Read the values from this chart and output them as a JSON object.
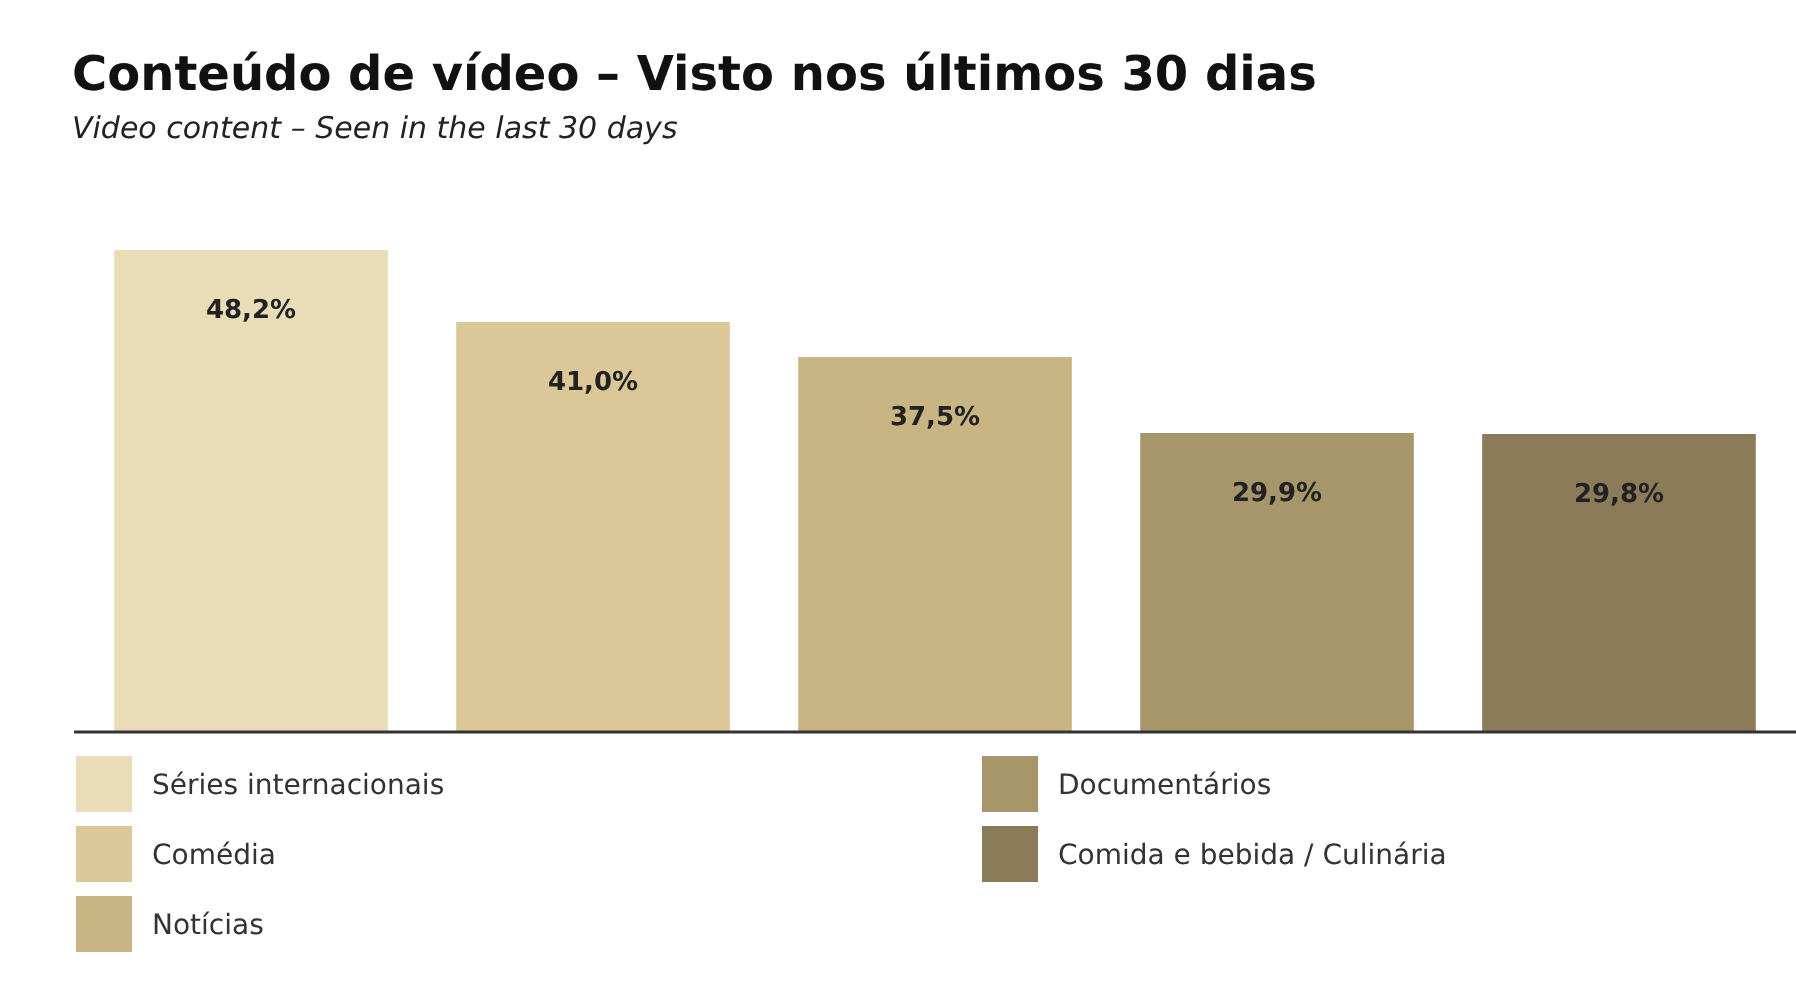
{
  "chart_data": {
    "type": "bar",
    "title": "Conteúdo de vídeo – Visto nos últimos 30 dias",
    "subtitle": "Video content – Seen in the last 30 days",
    "categories": [
      null,
      null,
      null,
      null,
      null
    ],
    "series": [
      {
        "name": "Séries internacionais",
        "color": "#e9dcb6",
        "values": [
          48.2,
          null,
          null,
          null,
          null
        ],
        "value_labels": [
          "48,2%",
          null,
          null,
          null,
          null
        ]
      },
      {
        "name": "Comédia",
        "color": "#dbc797",
        "values": [
          null,
          41.0,
          null,
          null,
          null
        ],
        "value_labels": [
          null,
          "41,0%",
          null,
          null,
          null
        ]
      },
      {
        "name": "Notícias",
        "color": "#c9b583",
        "values": [
          null,
          null,
          37.5,
          null,
          null
        ],
        "value_labels": [
          null,
          null,
          "37,5%",
          null,
          null
        ]
      },
      {
        "name": "Documentários",
        "color": "#a69669",
        "values": [
          null,
          null,
          null,
          29.9,
          null
        ],
        "value_labels": [
          null,
          null,
          null,
          "29,9%",
          null
        ]
      },
      {
        "name": "Comida e bebida / Culinária",
        "color": "#8c7b58",
        "values": [
          null,
          null,
          null,
          null,
          29.8
        ],
        "value_labels": [
          null,
          null,
          null,
          null,
          "29,8%"
        ]
      }
    ],
    "stacked": true,
    "legend": "bottom"
  }
}
